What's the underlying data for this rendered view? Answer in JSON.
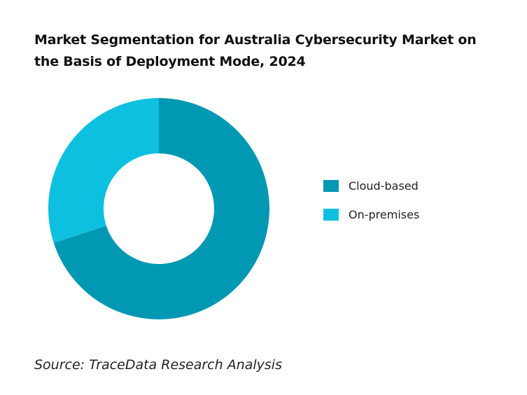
{
  "chart_data": {
    "type": "pie",
    "donut": true,
    "title": "Market Segmentation for Australia Cybersecurity Market on the Basis of Deployment Mode, 2024",
    "categories": [
      "Cloud-based",
      "On-premises"
    ],
    "values": [
      70,
      30
    ],
    "colors": [
      "#0198b3",
      "#0dc0e0"
    ],
    "legend_position": "right",
    "source": "Source: TraceData Research Analysis"
  }
}
